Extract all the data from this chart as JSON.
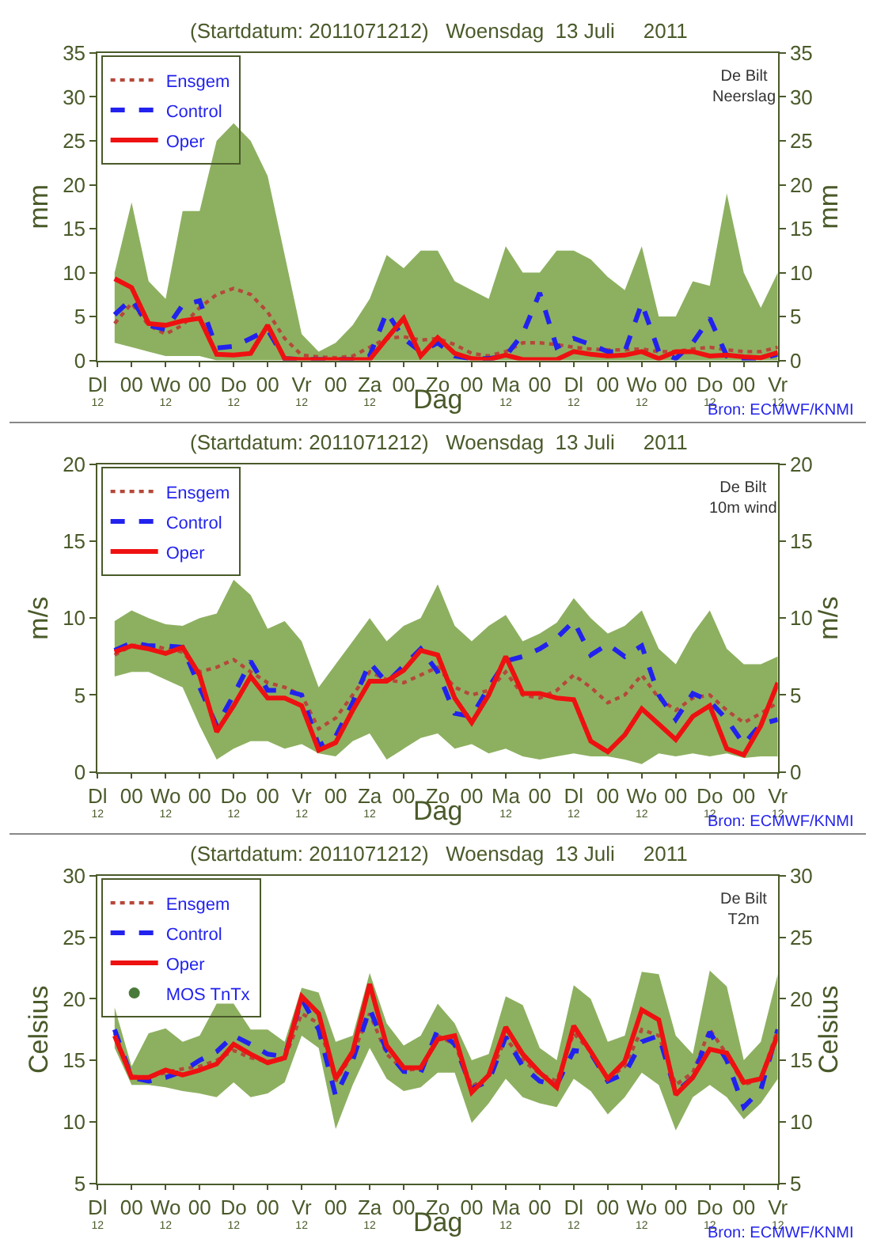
{
  "chart_data": [
    {
      "type": "line",
      "title": "(Startdatum: 2011071212)   Woensdag  13 Juli     2011",
      "xlabel": "Dag",
      "ylabel": "mm",
      "y2label": "mm",
      "annotations": [
        "De Bilt\nNeerslag",
        "Bron: ECMWF/KNMI"
      ],
      "categories": [
        "Dl\n12",
        null,
        "00",
        null,
        "Wo\n12",
        null,
        "00",
        null,
        "Do\n12",
        null,
        "00",
        null,
        "Vr\n12",
        null,
        "00",
        null,
        "Za\n12",
        null,
        "00",
        null,
        "Zo",
        null,
        "00",
        null,
        "Ma\n12",
        null,
        "00",
        null,
        "Dl\n12",
        null,
        "00",
        null,
        "Wo\n12",
        null,
        "00",
        null,
        "Do\n12",
        null,
        "00",
        null,
        "Vr\n12"
      ],
      "ylim": [
        0,
        35
      ],
      "yticks": [
        0,
        5,
        10,
        15,
        20,
        25,
        30,
        35
      ],
      "y2lim": [
        0,
        35
      ],
      "y2ticks": [
        0,
        5,
        10,
        15,
        20,
        25,
        30,
        35
      ],
      "legend": "top left",
      "series": [
        {
          "name": "Ensgem",
          "color": "#b5483a",
          "line_style": "dotted",
          "values": [
            null,
            4.2,
            6.5,
            4.0,
            3.0,
            4.0,
            6.0,
            7.5,
            8.2,
            7.5,
            5.5,
            2.5,
            0.6,
            0.4,
            0.3,
            0.5,
            1.5,
            2.5,
            2.7,
            2.3,
            2.5,
            1.8,
            0.8,
            0.5,
            1.0,
            2.0,
            2.0,
            1.8,
            1.5,
            1.3,
            1.2,
            1.2,
            1.3,
            1.0,
            1.0,
            1.3,
            1.5,
            1.2,
            1.0,
            1.0,
            1.5
          ],
          "lower": [
            null,
            2,
            1.5,
            1,
            0.5,
            0.5,
            0.5,
            0,
            0,
            0,
            0,
            0,
            0,
            0,
            0,
            0,
            0,
            0,
            0,
            0,
            0,
            0,
            0,
            0,
            0,
            0,
            0,
            0,
            0,
            0,
            0,
            0,
            0,
            0,
            0,
            0,
            0,
            0,
            0,
            0,
            0
          ],
          "upper": [
            null,
            10,
            18,
            9,
            7,
            17,
            17,
            25,
            27,
            25,
            21,
            12,
            3,
            1,
            2,
            4,
            7,
            12,
            10.5,
            12.5,
            12.5,
            9,
            8,
            7,
            13,
            10,
            10,
            12.5,
            12.5,
            11.5,
            9.5,
            8,
            13,
            5,
            5,
            9,
            8.5,
            19,
            10,
            6,
            10
          ]
        },
        {
          "name": "Control",
          "color": "#2222ee",
          "line_style": "dashed",
          "values": [
            null,
            5.2,
            7.0,
            4.0,
            3.5,
            6.3,
            6.8,
            1.4,
            1.6,
            2.5,
            3.5,
            0.2,
            0.1,
            0.1,
            0.1,
            0.1,
            0.5,
            5.5,
            2.5,
            1.0,
            2.0,
            0.5,
            0.2,
            0.2,
            0.5,
            3.0,
            7.7,
            1.5,
            2.5,
            1.8,
            1.0,
            1.0,
            6.5,
            1.0,
            0.2,
            2.0,
            4.8,
            0.5,
            0.2,
            0.2,
            0.7
          ]
        },
        {
          "name": "Oper",
          "color": "#ee1111",
          "line_style": "solid",
          "values": [
            null,
            9.3,
            8.3,
            4.2,
            4.0,
            4.5,
            4.8,
            0.7,
            0.6,
            0.8,
            4.0,
            0.2,
            0.1,
            0.1,
            0.1,
            0.1,
            0.1,
            2.5,
            4.8,
            0.5,
            2.6,
            0.8,
            0.2,
            0.1,
            0.6,
            0.1,
            0.1,
            0.1,
            1.0,
            0.7,
            0.5,
            0.6,
            1.0,
            0.2,
            1.0,
            1.0,
            0.5,
            0.6,
            0.4,
            0.3,
            0.9
          ]
        }
      ]
    },
    {
      "type": "line",
      "title": "(Startdatum: 2011071212)   Woensdag  13 Juli     2011",
      "xlabel": "Dag",
      "ylabel": "m/s",
      "y2label": "m/s",
      "annotations": [
        "De Bilt\n10m wind",
        "Bron: ECMWF/KNMI"
      ],
      "categories": [
        "Dl\n12",
        null,
        "00",
        null,
        "Wo\n12",
        null,
        "00",
        null,
        "Do\n12",
        null,
        "00",
        null,
        "Vr\n12",
        null,
        "00",
        null,
        "Za\n12",
        null,
        "00",
        null,
        "Zo",
        null,
        "00",
        null,
        "Ma\n12",
        null,
        "00",
        null,
        "Dl\n12",
        null,
        "00",
        null,
        "Wo\n12",
        null,
        "00",
        null,
        "Do\n12",
        null,
        "00",
        null,
        "Vr\n12"
      ],
      "ylim": [
        0,
        20
      ],
      "yticks": [
        0,
        5,
        10,
        15,
        20
      ],
      "y2lim": [
        0,
        20
      ],
      "y2ticks": [
        0,
        5,
        10,
        15,
        20
      ],
      "legend": "top left",
      "series": [
        {
          "name": "Ensgem",
          "color": "#b5483a",
          "line_style": "dotted",
          "values": [
            null,
            7.6,
            8.2,
            8.3,
            8.0,
            7.8,
            6.5,
            6.8,
            7.3,
            6.5,
            5.8,
            5.5,
            5.0,
            2.8,
            3.5,
            5.0,
            6.5,
            6.0,
            5.8,
            6.3,
            6.8,
            5.5,
            5.0,
            5.3,
            6.5,
            5.0,
            4.8,
            5.3,
            6.3,
            5.5,
            4.5,
            5.0,
            6.3,
            4.8,
            4.0,
            4.8,
            5.0,
            4.0,
            3.2,
            3.8,
            4.5
          ],
          "lower": [
            null,
            6.2,
            6.5,
            6.5,
            6.0,
            5.5,
            3,
            0.8,
            1.5,
            2,
            2,
            1.5,
            1.8,
            1.2,
            1,
            2,
            2.5,
            0.8,
            1.5,
            2.2,
            2.5,
            1.5,
            1.8,
            1.2,
            1.5,
            1,
            0.8,
            1,
            1.2,
            1,
            1,
            0.8,
            0.5,
            1.2,
            1,
            1.2,
            1,
            1.2,
            0.9,
            1,
            1.0
          ],
          "upper": [
            null,
            9.8,
            10.5,
            10,
            9.6,
            9.5,
            10,
            10.3,
            12.5,
            11.5,
            9.3,
            9.8,
            8.5,
            5.5,
            7,
            8.5,
            10,
            8.5,
            9.5,
            10,
            12.2,
            9.5,
            8.5,
            9.5,
            10.2,
            8.5,
            9,
            9.7,
            11.3,
            10,
            9,
            9.5,
            10.5,
            8,
            7,
            9,
            10.5,
            8,
            7,
            7,
            7.5
          ]
        },
        {
          "name": "Control",
          "color": "#2222ee",
          "line_style": "dashed",
          "values": [
            null,
            7.9,
            8.4,
            8.2,
            8.2,
            8.1,
            5.5,
            3.0,
            5.0,
            7.2,
            5.3,
            5.3,
            5.0,
            1.7,
            2.3,
            4.5,
            7.1,
            5.8,
            6.9,
            8.0,
            6.5,
            3.8,
            3.6,
            5.5,
            7.2,
            7.5,
            8.0,
            8.7,
            9.8,
            7.6,
            8.3,
            7.5,
            8.2,
            5.0,
            3.4,
            5.1,
            4.6,
            3.4,
            1.8,
            3.1,
            3.4
          ]
        },
        {
          "name": "Oper",
          "color": "#ee1111",
          "line_style": "solid",
          "values": [
            null,
            7.8,
            8.2,
            8.0,
            7.7,
            8.1,
            6.3,
            2.6,
            4.3,
            6.2,
            4.8,
            4.8,
            4.3,
            1.4,
            1.9,
            4.0,
            5.9,
            5.9,
            6.6,
            7.9,
            7.6,
            4.8,
            3.2,
            5.0,
            7.5,
            5.1,
            5.1,
            4.8,
            4.7,
            2.0,
            1.3,
            2.4,
            4.1,
            3.1,
            2.1,
            3.6,
            4.3,
            1.5,
            1.1,
            3.0,
            5.8
          ]
        }
      ]
    },
    {
      "type": "line",
      "title": "(Startdatum: 2011071212)   Woensdag  13 Juli     2011",
      "xlabel": "Dag",
      "ylabel": "Celsius",
      "y2label": "Celsius",
      "annotations": [
        "De Bilt\nT2m",
        "Bron: ECMWF/KNMI"
      ],
      "categories": [
        "Dl\n12",
        null,
        "00",
        null,
        "Wo\n12",
        null,
        "00",
        null,
        "Do\n12",
        null,
        "00",
        null,
        "Vr\n12",
        null,
        "00",
        null,
        "Za\n12",
        null,
        "00",
        null,
        "Zo",
        null,
        "00",
        null,
        "Ma\n12",
        null,
        "00",
        null,
        "Dl\n12",
        null,
        "00",
        null,
        "Wo\n12",
        null,
        "00",
        null,
        "Do\n12",
        null,
        "00",
        null,
        "Vr\n12"
      ],
      "ylim": [
        5,
        30
      ],
      "yticks": [
        5,
        10,
        15,
        20,
        25,
        30
      ],
      "y2lim": [
        5,
        30
      ],
      "y2ticks": [
        5,
        10,
        15,
        20,
        25,
        30
      ],
      "legend": "top left",
      "series": [
        {
          "name": "Ensgem",
          "color": "#b5483a",
          "line_style": "dotted",
          "values": [
            null,
            17.2,
            13.7,
            13.6,
            14.0,
            14.3,
            14.5,
            15.0,
            15.8,
            15.2,
            14.9,
            15.1,
            18.8,
            18.0,
            13.3,
            15.5,
            18.8,
            15.5,
            14.2,
            14.3,
            17.0,
            16.3,
            12.9,
            13.6,
            16.8,
            15.0,
            13.9,
            13.3,
            17.2,
            15.7,
            13.5,
            14.5,
            17.5,
            17.0,
            13.0,
            14.0,
            17.5,
            15.5,
            13.0,
            13.5,
            17.5
          ],
          "lower": [
            null,
            16,
            13,
            13,
            12.8,
            12.5,
            12.3,
            12,
            13.2,
            12,
            12.3,
            13.2,
            17,
            16,
            9.4,
            13,
            16,
            13.5,
            12.5,
            12.8,
            14,
            14,
            9.9,
            11.5,
            13.5,
            12,
            11.5,
            11.2,
            13.5,
            12.5,
            10.6,
            12,
            14,
            13,
            9.3,
            12,
            13,
            12,
            10.2,
            11.5,
            13.5
          ],
          "upper": [
            null,
            19.3,
            14.5,
            17.2,
            17.6,
            16.5,
            17,
            19.6,
            19.6,
            17.5,
            17.5,
            16.5,
            20.9,
            20.5,
            16.5,
            17,
            22.1,
            18,
            16.2,
            17,
            19.6,
            18,
            15,
            15.5,
            20.2,
            19.5,
            16,
            15,
            21.1,
            20,
            16.5,
            17,
            22.2,
            22,
            17,
            15.5,
            22.3,
            21,
            15,
            16.5,
            22
          ]
        },
        {
          "name": "Control",
          "color": "#2222ee",
          "line_style": "dashed",
          "values": [
            null,
            17.5,
            13.6,
            13.3,
            13.6,
            14.1,
            15.0,
            15.7,
            17.0,
            16.3,
            15.5,
            15.3,
            20.0,
            17.5,
            12.1,
            15.0,
            19.2,
            15.8,
            14.1,
            14.0,
            17.5,
            16.3,
            12.7,
            13.3,
            16.9,
            14.5,
            13.3,
            13.0,
            15.8,
            15.6,
            13.3,
            13.9,
            16.5,
            17.0,
            12.4,
            13.6,
            17.3,
            15.0,
            11.2,
            12.6,
            17.5
          ]
        },
        {
          "name": "Oper",
          "color": "#ee1111",
          "line_style": "solid",
          "values": [
            null,
            17.0,
            13.6,
            13.6,
            14.2,
            13.8,
            14.2,
            14.7,
            16.3,
            15.5,
            14.8,
            15.2,
            20.2,
            18.8,
            13.5,
            15.7,
            21.2,
            16.2,
            14.4,
            14.4,
            16.7,
            17.0,
            12.4,
            13.8,
            17.7,
            15.5,
            14.0,
            12.8,
            17.8,
            15.7,
            13.5,
            14.9,
            19.1,
            18.3,
            12.2,
            13.6,
            15.9,
            15.6,
            13.2,
            13.5,
            17.1
          ]
        },
        {
          "name": "MOS TnTx",
          "type": "scatter",
          "color": "#4a7a3a",
          "marker": "circle",
          "values": [
            null,
            null,
            null,
            null,
            null,
            null,
            null,
            null,
            null,
            null,
            null,
            null,
            null,
            null,
            null,
            null,
            null,
            null,
            null,
            null,
            null,
            null,
            null,
            null,
            null,
            null,
            null,
            null,
            null,
            null,
            null,
            null,
            null,
            null,
            null,
            null,
            null,
            null,
            null,
            null,
            null
          ]
        }
      ]
    }
  ]
}
